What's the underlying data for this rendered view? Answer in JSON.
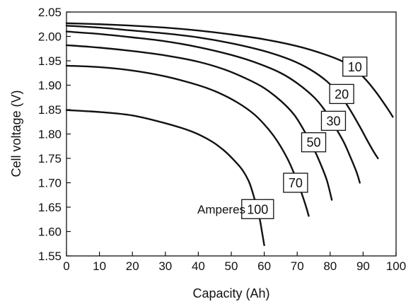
{
  "chart_data": {
    "type": "line",
    "title": "",
    "xlabel": "Capacity (Ah)",
    "ylabel": "Cell voltage (V)",
    "xlim": [
      0,
      100
    ],
    "ylim": [
      1.55,
      2.05
    ],
    "x_ticks": [
      "0",
      "10",
      "20",
      "30",
      "40",
      "50",
      "60",
      "70",
      "80",
      "90",
      "100"
    ],
    "y_ticks": [
      "1.55",
      "1.60",
      "1.65",
      "1.70",
      "1.75",
      "1.80",
      "1.85",
      "1.90",
      "1.95",
      "2.00",
      "2.05"
    ],
    "grid": false,
    "annotation": "Amperes",
    "series": [
      {
        "label": "10",
        "points": [
          [
            0,
            2.027
          ],
          [
            10,
            2.025
          ],
          [
            20,
            2.022
          ],
          [
            30,
            2.018
          ],
          [
            40,
            2.012
          ],
          [
            50,
            2.004
          ],
          [
            60,
            1.994
          ],
          [
            70,
            1.98
          ],
          [
            78,
            1.964
          ],
          [
            84,
            1.948
          ],
          [
            88,
            1.93
          ],
          [
            91,
            1.91
          ],
          [
            94,
            1.885
          ],
          [
            96,
            1.866
          ],
          [
            98,
            1.846
          ],
          [
            99,
            1.835
          ]
        ]
      },
      {
        "label": "20",
        "points": [
          [
            0,
            2.022
          ],
          [
            10,
            2.018
          ],
          [
            20,
            2.012
          ],
          [
            30,
            2.006
          ],
          [
            40,
            1.998
          ],
          [
            50,
            1.986
          ],
          [
            60,
            1.97
          ],
          [
            68,
            1.952
          ],
          [
            74,
            1.932
          ],
          [
            79,
            1.908
          ],
          [
            83,
            1.88
          ],
          [
            86,
            1.85
          ],
          [
            89,
            1.815
          ],
          [
            91,
            1.79
          ],
          [
            93,
            1.766
          ],
          [
            94.5,
            1.75
          ]
        ]
      },
      {
        "label": "30",
        "points": [
          [
            0,
            2.01
          ],
          [
            10,
            2.005
          ],
          [
            20,
            1.998
          ],
          [
            30,
            1.99
          ],
          [
            40,
            1.978
          ],
          [
            50,
            1.962
          ],
          [
            58,
            1.945
          ],
          [
            65,
            1.925
          ],
          [
            70,
            1.904
          ],
          [
            75,
            1.876
          ],
          [
            78,
            1.852
          ],
          [
            81,
            1.82
          ],
          [
            84,
            1.785
          ],
          [
            86,
            1.755
          ],
          [
            88,
            1.722
          ],
          [
            89,
            1.7
          ]
        ]
      },
      {
        "label": "50",
        "points": [
          [
            0,
            1.982
          ],
          [
            10,
            1.977
          ],
          [
            20,
            1.97
          ],
          [
            30,
            1.961
          ],
          [
            40,
            1.948
          ],
          [
            48,
            1.932
          ],
          [
            55,
            1.912
          ],
          [
            60,
            1.894
          ],
          [
            65,
            1.868
          ],
          [
            69,
            1.84
          ],
          [
            72,
            1.808
          ],
          [
            75,
            1.77
          ],
          [
            77,
            1.74
          ],
          [
            79,
            1.705
          ],
          [
            80.5,
            1.665
          ]
        ]
      },
      {
        "label": "70",
        "points": [
          [
            0,
            1.94
          ],
          [
            10,
            1.937
          ],
          [
            20,
            1.93
          ],
          [
            30,
            1.918
          ],
          [
            40,
            1.9
          ],
          [
            46,
            1.885
          ],
          [
            52,
            1.864
          ],
          [
            57,
            1.84
          ],
          [
            61,
            1.812
          ],
          [
            64,
            1.785
          ],
          [
            67,
            1.75
          ],
          [
            69,
            1.72
          ],
          [
            71,
            1.685
          ],
          [
            72.5,
            1.655
          ],
          [
            73.5,
            1.632
          ]
        ]
      },
      {
        "label": "100",
        "points": [
          [
            0,
            1.849
          ],
          [
            10,
            1.845
          ],
          [
            20,
            1.838
          ],
          [
            30,
            1.822
          ],
          [
            38,
            1.805
          ],
          [
            44,
            1.785
          ],
          [
            48,
            1.765
          ],
          [
            51,
            1.745
          ],
          [
            53.5,
            1.725
          ],
          [
            55.5,
            1.7
          ],
          [
            57,
            1.668
          ],
          [
            58.5,
            1.63
          ],
          [
            59.3,
            1.6
          ],
          [
            60,
            1.572
          ]
        ]
      }
    ],
    "curve_labels": [
      {
        "text": "10",
        "at": [
          87.5,
          1.938
        ]
      },
      {
        "text": "20",
        "at": [
          83.5,
          1.882
        ]
      },
      {
        "text": "30",
        "at": [
          81,
          1.827
        ]
      },
      {
        "text": "50",
        "at": [
          75,
          1.783
        ]
      },
      {
        "text": "70",
        "at": [
          69.5,
          1.7
        ]
      },
      {
        "text": "100",
        "at": [
          58,
          1.646
        ]
      }
    ],
    "annotation_at": [
      47,
      1.646
    ]
  }
}
